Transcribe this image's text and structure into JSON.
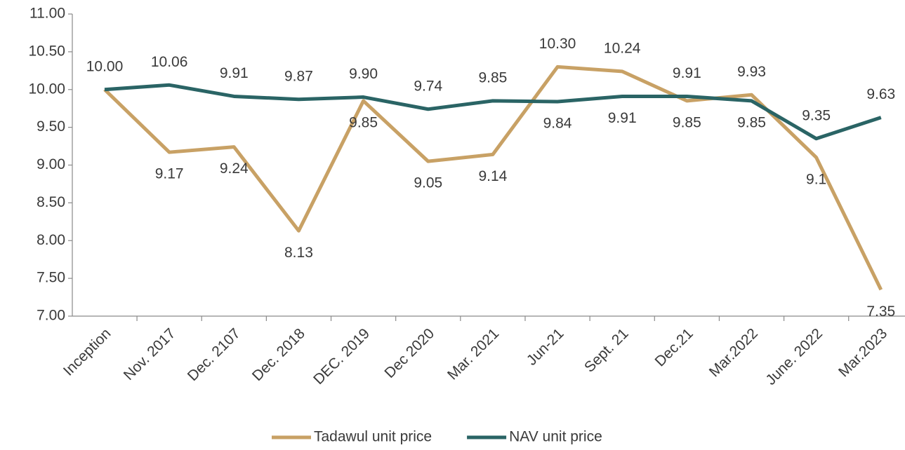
{
  "chart_data": {
    "type": "line",
    "categories": [
      "Inception",
      "Nov. 2017",
      "Dec. 2107",
      "Dec. 2018",
      "DEC. 2019",
      "Dec 2020",
      "Mar. 2021",
      "Jun-21",
      "Sept. 21",
      "Dec.21",
      "Mar.2022",
      "June. 2022",
      "Mar.2023"
    ],
    "series": [
      {
        "name": "Tadawul unit price",
        "color": "#c8a165",
        "values": [
          10.0,
          9.17,
          9.24,
          8.13,
          9.85,
          9.05,
          9.14,
          10.3,
          10.24,
          9.85,
          9.93,
          9.1,
          7.35
        ],
        "value_labels": [
          "10.00",
          "9.17",
          "9.24",
          "8.13",
          "9.85",
          "9.05",
          "9.14",
          "10.30",
          "10.24",
          "9.85",
          "9.93",
          "9.1",
          "7.35"
        ]
      },
      {
        "name": "NAV unit price",
        "color": "#2a6465",
        "values": [
          10.0,
          10.06,
          9.91,
          9.87,
          9.9,
          9.74,
          9.85,
          9.84,
          9.91,
          9.91,
          9.85,
          9.35,
          9.63
        ],
        "value_labels": [
          null,
          "10.06",
          "9.91",
          "9.87",
          "9.90",
          "9.74",
          "9.85",
          "9.84",
          "9.91",
          "9.91",
          "9.85",
          "9.35",
          "9.63"
        ]
      }
    ],
    "ylim": [
      7.0,
      11.0
    ],
    "yticks": [
      {
        "value": 7.0,
        "label": "7.00"
      },
      {
        "value": 7.5,
        "label": "7.50"
      },
      {
        "value": 8.0,
        "label": "8.00"
      },
      {
        "value": 8.5,
        "label": "8.50"
      },
      {
        "value": 9.0,
        "label": "9.00"
      },
      {
        "value": 9.5,
        "label": "9.50"
      },
      {
        "value": 10.0,
        "label": "10.00"
      },
      {
        "value": 10.5,
        "label": "10.50"
      },
      {
        "value": 11.0,
        "label": "11.00"
      }
    ],
    "grid": false,
    "legend": "bottom"
  }
}
